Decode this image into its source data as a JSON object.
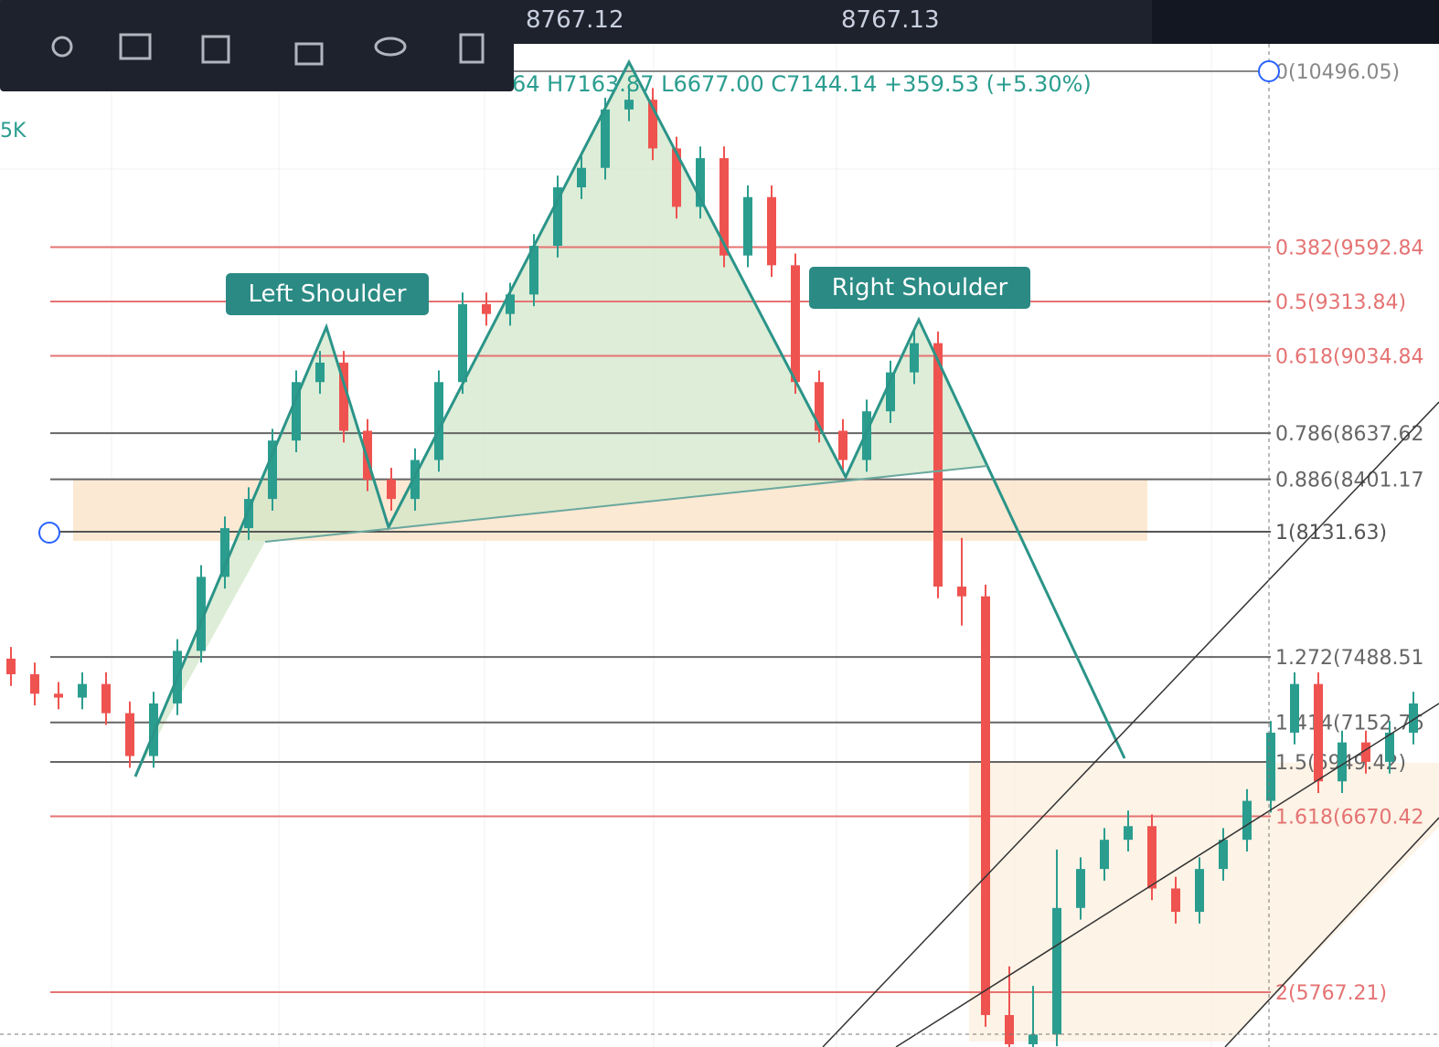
{
  "chart_data": {
    "type": "candlestick",
    "toolbar": {
      "prices": [
        "8767.12",
        "8767.13"
      ]
    },
    "ohlc_header": "64 H7163.87 L6677.00 C7144.14 +359.53 (+5.30%)",
    "scale_label": "5K",
    "annotations": [
      "Left Shoulder",
      "Right Shoulder"
    ],
    "ylim": [
      5486,
      10862
    ],
    "up_color": "#2a9d8f",
    "down_color": "#ef5350",
    "fib_levels": [
      {
        "label": "0(10496.05)",
        "price": 10496.05,
        "color": "#888888"
      },
      {
        "label": "0.382(9592.84",
        "price": 9592.84,
        "color": "#e57373"
      },
      {
        "label": "0.5(9313.84)",
        "price": 9313.84,
        "color": "#e57373"
      },
      {
        "label": "0.618(9034.84",
        "price": 9034.84,
        "color": "#e57373"
      },
      {
        "label": "0.786(8637.62",
        "price": 8637.62,
        "color": "#666666"
      },
      {
        "label": "0.886(8401.17",
        "price": 8401.17,
        "color": "#666666"
      },
      {
        "label": "1(8131.63)",
        "price": 8131.63,
        "color": "#555555"
      },
      {
        "label": "1.272(7488.51",
        "price": 7488.51,
        "color": "#666666"
      },
      {
        "label": "1.414(7152.76",
        "price": 7152.76,
        "color": "#666666"
      },
      {
        "label": "1.5(6949.42)",
        "price": 6949.42,
        "color": "#666666"
      },
      {
        "label": "1.618(6670.42",
        "price": 6670.42,
        "color": "#e57373"
      },
      {
        "label": "2(5767.21)",
        "price": 5767.21,
        "color": "#e57373"
      }
    ],
    "candles": [
      [
        7480,
        7540,
        7340,
        7400
      ],
      [
        7400,
        7460,
        7240,
        7300
      ],
      [
        7300,
        7360,
        7220,
        7280
      ],
      [
        7280,
        7410,
        7220,
        7350
      ],
      [
        7350,
        7410,
        7140,
        7200
      ],
      [
        7200,
        7260,
        6920,
        6980
      ],
      [
        6980,
        7310,
        6920,
        7250
      ],
      [
        7250,
        7580,
        7190,
        7520
      ],
      [
        7520,
        7960,
        7460,
        7900
      ],
      [
        7900,
        8210,
        7840,
        8150
      ],
      [
        8150,
        8360,
        8090,
        8300
      ],
      [
        8300,
        8660,
        8240,
        8600
      ],
      [
        8600,
        8960,
        8540,
        8900
      ],
      [
        8900,
        9060,
        8840,
        9000
      ],
      [
        9000,
        9060,
        8590,
        8650
      ],
      [
        8650,
        8710,
        8340,
        8400
      ],
      [
        8400,
        8460,
        8240,
        8300
      ],
      [
        8300,
        8560,
        8240,
        8500
      ],
      [
        8500,
        8960,
        8440,
        8900
      ],
      [
        8900,
        9360,
        8840,
        9300
      ],
      [
        9300,
        9360,
        9190,
        9250
      ],
      [
        9250,
        9410,
        9190,
        9350
      ],
      [
        9350,
        9660,
        9290,
        9600
      ],
      [
        9600,
        9960,
        9540,
        9900
      ],
      [
        9900,
        10060,
        9840,
        10000
      ],
      [
        10000,
        10360,
        9940,
        10300
      ],
      [
        10300,
        10410,
        10240,
        10350
      ],
      [
        10350,
        10410,
        10040,
        10100
      ],
      [
        10100,
        10160,
        9740,
        9800
      ],
      [
        9800,
        10110,
        9740,
        10050
      ],
      [
        10050,
        10110,
        9490,
        9550
      ],
      [
        9550,
        9910,
        9490,
        9850
      ],
      [
        9850,
        9910,
        9440,
        9500
      ],
      [
        9500,
        9560,
        8840,
        8900
      ],
      [
        8900,
        8960,
        8590,
        8650
      ],
      [
        8650,
        8710,
        8440,
        8500
      ],
      [
        8500,
        8810,
        8440,
        8750
      ],
      [
        8750,
        9010,
        8690,
        8950
      ],
      [
        8950,
        9160,
        8890,
        9100
      ],
      [
        9100,
        9160,
        7790,
        7850
      ],
      [
        7850,
        8100,
        7650,
        7800
      ],
      [
        7800,
        7860,
        5590,
        5650
      ],
      [
        5650,
        5900,
        5440,
        5500
      ],
      [
        5500,
        5800,
        5440,
        5550
      ],
      [
        5550,
        6500,
        5490,
        6200
      ],
      [
        6200,
        6460,
        6140,
        6400
      ],
      [
        6400,
        6610,
        6340,
        6550
      ],
      [
        6550,
        6700,
        6490,
        6620
      ],
      [
        6620,
        6680,
        6240,
        6300
      ],
      [
        6300,
        6360,
        6120,
        6180
      ],
      [
        6180,
        6460,
        6120,
        6400
      ],
      [
        6400,
        6610,
        6340,
        6550
      ],
      [
        6550,
        6810,
        6490,
        6750
      ],
      [
        6750,
        7160,
        6690,
        7100
      ],
      [
        7100,
        7410,
        7040,
        7350
      ],
      [
        7350,
        7410,
        6790,
        6850
      ],
      [
        6850,
        7110,
        6790,
        7050
      ],
      [
        7050,
        7110,
        6890,
        6950
      ],
      [
        6950,
        7160,
        6890,
        7100
      ],
      [
        7100,
        7310,
        7040,
        7250
      ]
    ]
  }
}
